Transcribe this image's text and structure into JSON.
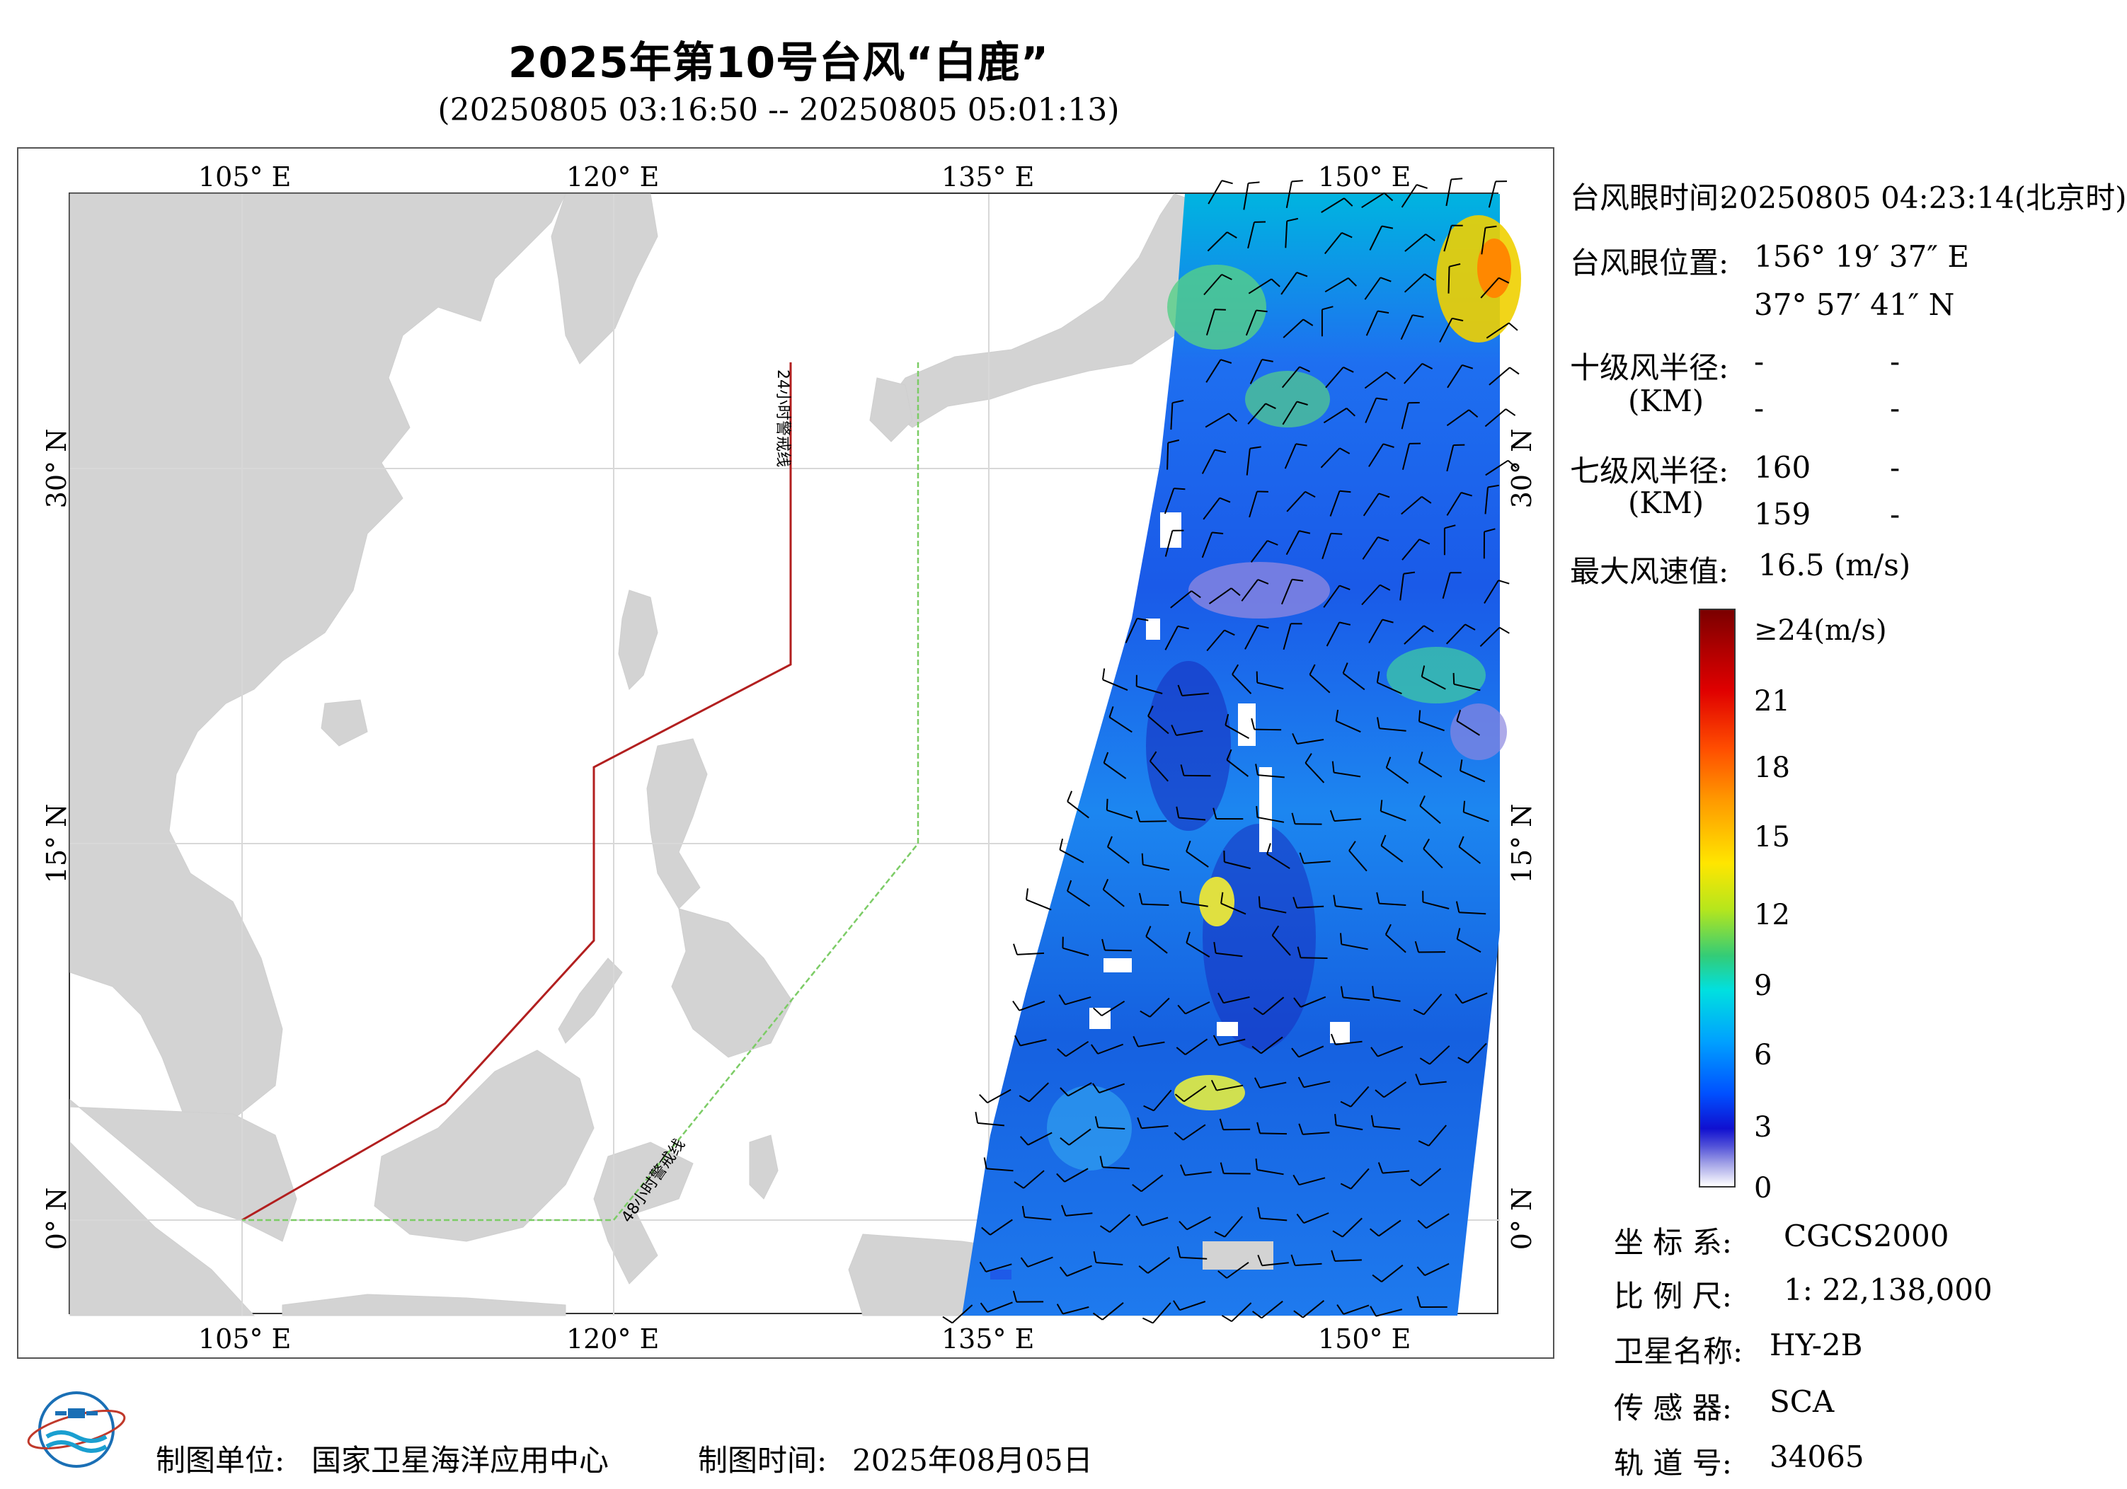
{
  "title": "2025年第10号台风“白鹿”",
  "subtitle": "(20250805 03:16:50 -- 20250805 05:01:13)",
  "map": {
    "lon_ticks_top": [
      "105° E",
      "120° E",
      "135° E",
      "150° E"
    ],
    "lon_ticks_bottom": [
      "105° E",
      "120° E",
      "135° E",
      "150° E"
    ],
    "lat_ticks_left": [
      "30° N",
      "15° N",
      "0° N"
    ],
    "lat_ticks_right": [
      "30° N",
      "15° N",
      "0° N"
    ],
    "warning_line_24h": "24小时警戒线",
    "warning_line_48h": "48小时警戒线",
    "colors": {
      "land": "#d3d3d3",
      "line_24h": "#b21f1f",
      "line_48h": "#7ccc66"
    }
  },
  "info": {
    "eye_time_label": "台风眼时间:",
    "eye_time_value": "20250805 04:23:14(北京时)",
    "eye_pos_label": "台风眼位置:",
    "eye_lon": "156° 19′ 37″ E",
    "eye_lat": "37° 57′ 41″ N",
    "r10_label": "十级风半径:",
    "r10_unit": "(KM)",
    "r10_values": [
      "-",
      "-",
      "-",
      "-"
    ],
    "r7_label": "七级风半径:",
    "r7_unit": "(KM)",
    "r7_values": [
      "160",
      "-",
      "159",
      "-"
    ],
    "max_wind_label": "最大风速值:",
    "max_wind_value": "16.5 (m/s)"
  },
  "colorbar": {
    "labels": [
      "≥24(m/s)",
      "21",
      "18",
      "15",
      "12",
      "9",
      "6",
      "3",
      "0"
    ]
  },
  "meta": {
    "coord_label": "坐 标 系:",
    "coord_value": "CGCS2000",
    "scale_label": "比 例 尺:",
    "scale_value": "1: 22,138,000",
    "sat_label": "卫星名称:",
    "sat_value": "HY-2B",
    "sensor_label": "传 感 器:",
    "sensor_value": "SCA",
    "orbit_label": "轨 道 号:",
    "orbit_value": "34065"
  },
  "footer": {
    "producer_label": "制图单位:",
    "producer_value": "国家卫星海洋应用中心",
    "date_label": "制图时间:",
    "date_value": "2025年08月05日"
  }
}
